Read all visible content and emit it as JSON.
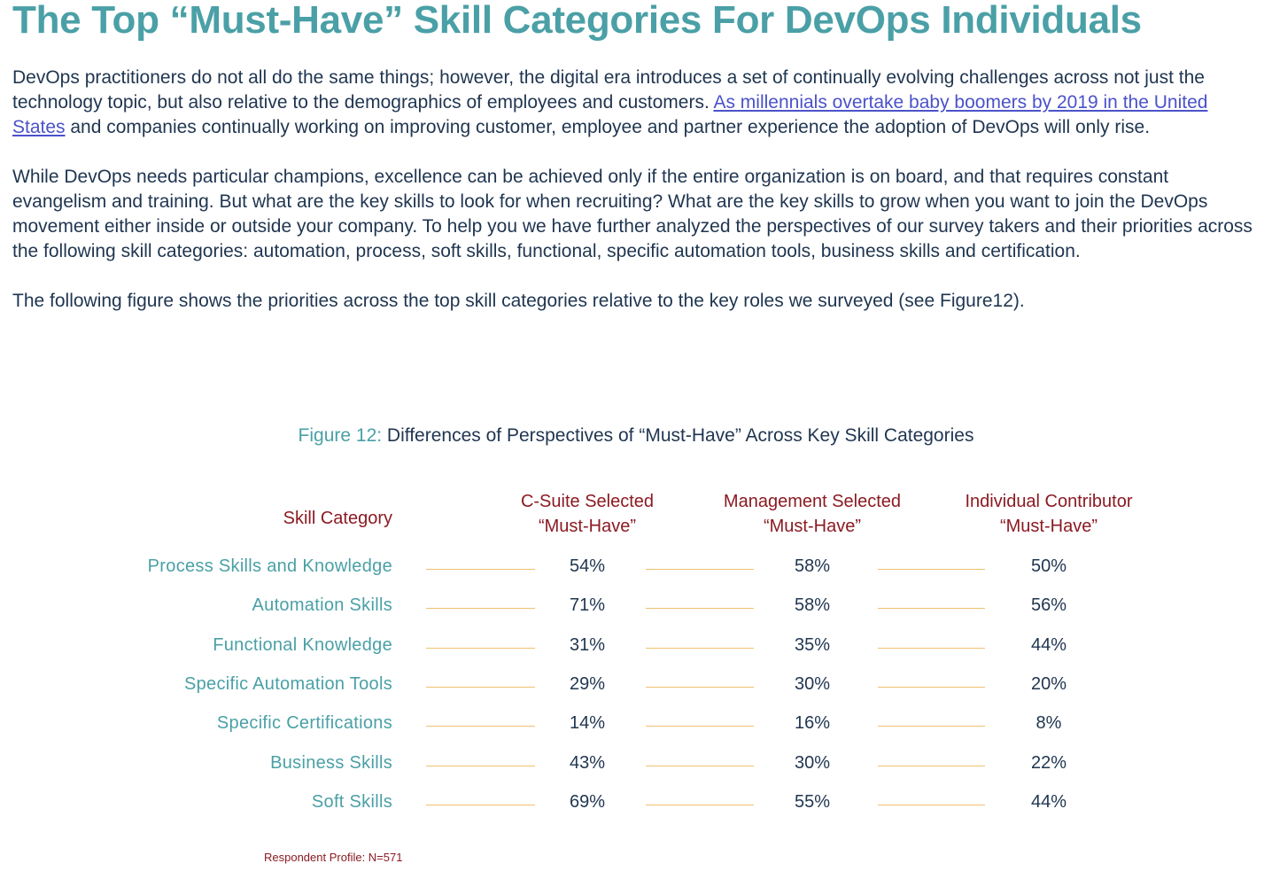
{
  "title": "The Top “Must-Have” Skill Categories For DevOps Individuals",
  "paragraphs": {
    "p1_before": "DevOps practitioners do not all do the same things; however, the digital era introduces a set of continually evolving challenges across not just the technology topic, but also relative to the demographics of employees and customers. ",
    "p1_link": "As millennials overtake baby boomers by 2019 in the United States",
    "p1_after": " and companies continually working on improving customer, employee and partner experience the adoption of DevOps will only rise.",
    "p2": "While DevOps needs particular champions, excellence can be achieved only if the entire organization is on board, and that requires constant evangelism and training. But what are the key skills to look for when recruiting? What are the key skills to grow when you want to join the DevOps movement either inside or outside your company. To help you we have further analyzed the perspectives of our survey takers and their priorities across the following skill categories: automation, process, soft skills, functional, specific automation tools, business skills and certification.",
    "p3": "The following figure shows the priorities across the top skill categories relative to the key roles we surveyed (see Figure12)."
  },
  "figure": {
    "number": "Figure 12:",
    "caption": " Differences of Perspectives of  “Must-Have”  Across Key Skill Categories"
  },
  "table": {
    "skill_header": "Skill Category",
    "columns": [
      {
        "line1": "C-Suite Selected",
        "line2": "“Must-Have”"
      },
      {
        "line1": "Management Selected",
        "line2": "“Must-Have”"
      },
      {
        "line1": "Individual Contributor",
        "line2": "“Must-Have”"
      }
    ],
    "rows": [
      {
        "label": "Process Skills and Knowledge",
        "values": [
          "54%",
          "58%",
          "50%"
        ]
      },
      {
        "label": "Automation Skills",
        "values": [
          "71%",
          "58%",
          "56%"
        ]
      },
      {
        "label": "Functional Knowledge",
        "values": [
          "31%",
          "35%",
          "44%"
        ]
      },
      {
        "label": "Specific Automation Tools",
        "values": [
          "29%",
          "30%",
          "20%"
        ]
      },
      {
        "label": "Specific Certifications",
        "values": [
          "14%",
          "16%",
          "8%"
        ]
      },
      {
        "label": "Business Skills",
        "values": [
          "43%",
          "30%",
          "22%"
        ]
      },
      {
        "label": "Soft Skills",
        "values": [
          "69%",
          "55%",
          "44%"
        ]
      }
    ]
  },
  "footnote": "Respondent Profile:  N=571",
  "colors": {
    "title_teal": "#4aa0a6",
    "header_red": "#8b1a22",
    "body_text": "#1f3550",
    "link_blue": "#4a52c9",
    "rule_orange": "#f0c070"
  }
}
